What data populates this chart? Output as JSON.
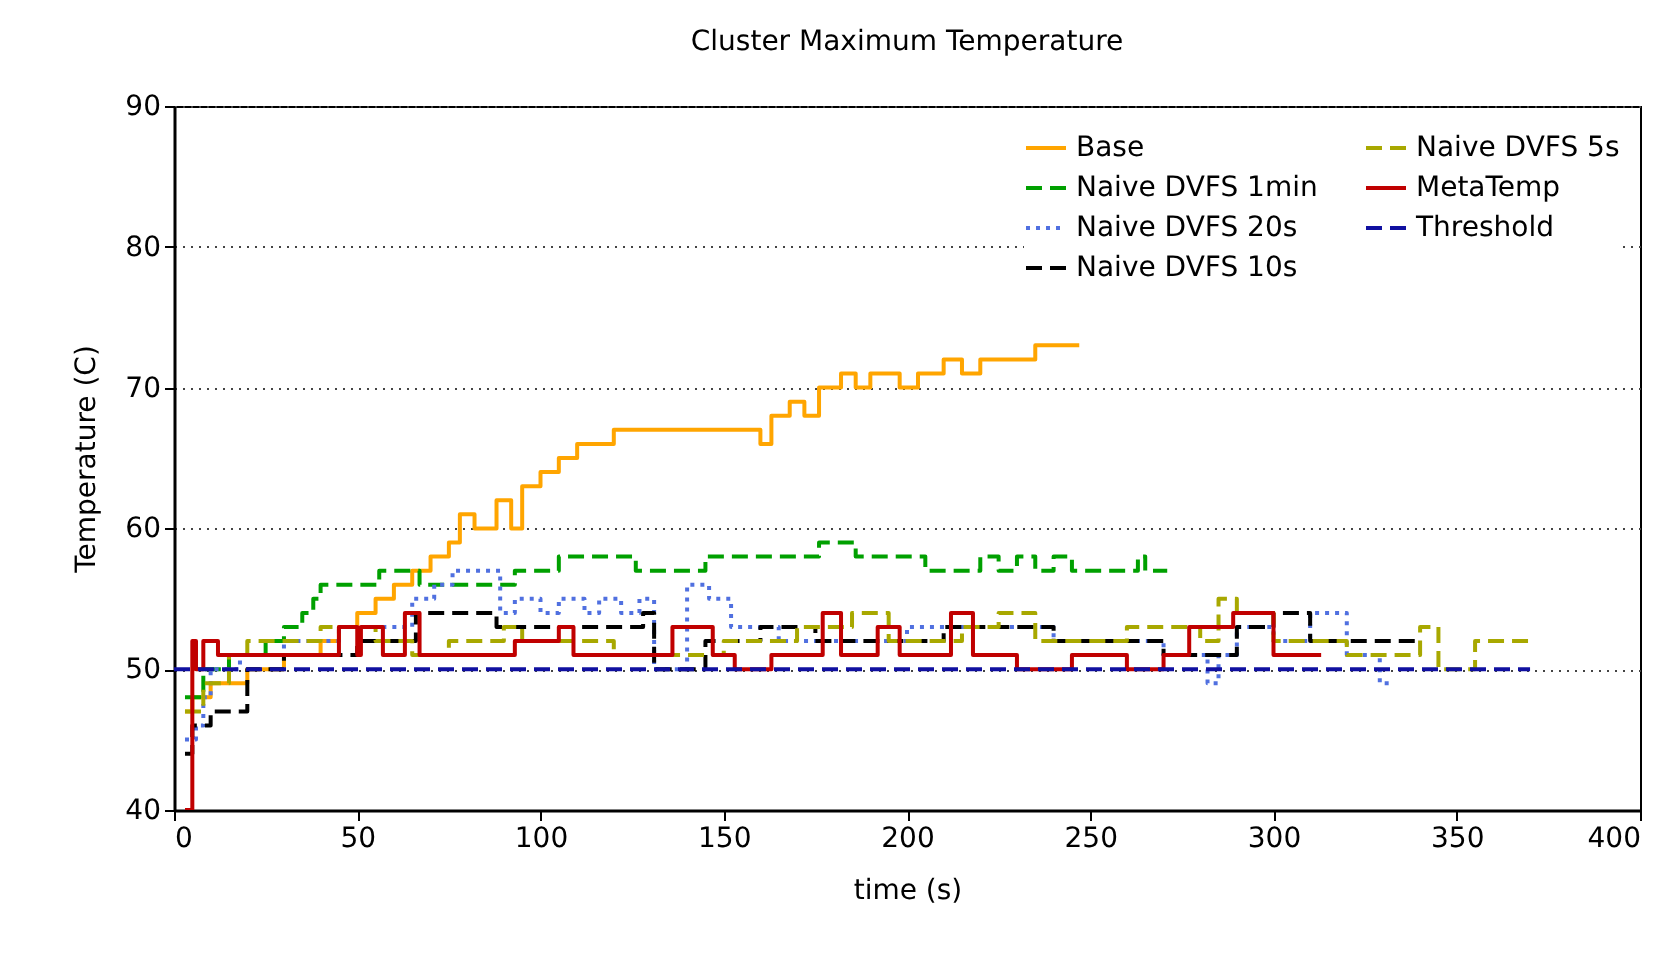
{
  "chart_data": {
    "type": "step",
    "title": "Cluster Maximum Temperature",
    "xlabel": "time (s)",
    "ylabel": "Temperature (C)",
    "xlim": [
      0,
      400
    ],
    "xticks": [
      0,
      50,
      100,
      150,
      200,
      250,
      300,
      350,
      400
    ],
    "ylim": [
      40,
      90
    ],
    "yticks": [
      40,
      50,
      60,
      70,
      80,
      90
    ],
    "grid": "y",
    "legend": "top right",
    "series": [
      {
        "name": "Base",
        "color": "#ffa500",
        "line_style": "solid",
        "x": [
          3,
          5,
          10,
          20,
          30,
          40,
          45,
          50,
          55,
          60,
          65,
          70,
          75,
          78,
          82,
          88,
          92,
          95,
          100,
          105,
          110,
          120,
          160,
          163,
          168,
          172,
          176,
          182,
          186,
          190,
          198,
          203,
          210,
          215,
          220,
          235,
          247
        ],
        "values": [
          47,
          48,
          49,
          50,
          51,
          52,
          53,
          54,
          55,
          56,
          57,
          58,
          59,
          61,
          60,
          62,
          60,
          63,
          64,
          65,
          66,
          67,
          66,
          68,
          69,
          68,
          70,
          71,
          70,
          71,
          70,
          71,
          72,
          71,
          72,
          73,
          73
        ]
      },
      {
        "name": "Naive DVFS 1min",
        "color": "#00a000",
        "line_style": "dashed",
        "x": [
          3,
          8,
          15,
          25,
          30,
          35,
          38,
          40,
          56,
          67,
          93,
          105,
          126,
          145,
          176,
          186,
          205,
          215,
          220,
          225,
          230,
          235,
          240,
          245,
          258,
          263,
          265,
          271
        ],
        "values": [
          48,
          50,
          51,
          52,
          53,
          54,
          55,
          56,
          57,
          56,
          57,
          58,
          57,
          58,
          59,
          58,
          57,
          57,
          58,
          57,
          58,
          57,
          58,
          57,
          57,
          58,
          57,
          57
        ]
      },
      {
        "name": "Naive DVFS 20s",
        "color": "#5070e0",
        "line_style": "dotted",
        "x": [
          3,
          6,
          8,
          10,
          18,
          30,
          45,
          65,
          71,
          76,
          89,
          93,
          100,
          105,
          112,
          116,
          122,
          127,
          131,
          138,
          140,
          146,
          152,
          165,
          200,
          240,
          270,
          282,
          285,
          290,
          300,
          310,
          320,
          329,
          332
        ],
        "values": [
          45,
          46,
          48,
          50,
          51,
          52,
          53,
          55,
          56,
          57,
          54,
          55,
          54,
          55,
          54,
          55,
          54,
          55,
          50,
          50,
          56,
          55,
          53,
          52,
          53,
          52,
          51,
          49,
          51,
          53,
          52,
          54,
          51,
          49,
          49
        ]
      },
      {
        "name": "Naive DVFS 10s",
        "color": "#000000",
        "line_style": "dashed",
        "x": [
          3,
          5,
          10,
          20,
          30,
          50,
          66,
          88,
          100,
          128,
          131,
          138,
          145,
          160,
          175,
          190,
          210,
          240,
          270,
          290,
          300,
          310,
          320,
          340
        ],
        "values": [
          44,
          46,
          47,
          50,
          51,
          52,
          54,
          53,
          53,
          54,
          50,
          50,
          52,
          53,
          52,
          52,
          53,
          52,
          51,
          53,
          54,
          52,
          52,
          52
        ]
      },
      {
        "name": "Naive DVFS 5s",
        "color": "#a8a800",
        "line_style": "dashed",
        "x": [
          3,
          8,
          15,
          20,
          40,
          55,
          65,
          75,
          90,
          95,
          120,
          150,
          170,
          185,
          195,
          215,
          225,
          235,
          260,
          280,
          285,
          290,
          300,
          320,
          340,
          345,
          355,
          360,
          370
        ],
        "values": [
          47,
          49,
          51,
          52,
          53,
          52,
          51,
          52,
          53,
          52,
          51,
          52,
          53,
          54,
          52,
          53,
          54,
          52,
          53,
          52,
          55,
          54,
          52,
          51,
          53,
          50,
          52,
          52,
          52
        ]
      },
      {
        "name": "MetaTemp",
        "color": "#c00000",
        "line_style": "solid",
        "x": [
          3,
          5,
          6,
          8,
          12,
          45,
          50,
          51,
          57,
          63,
          67,
          93,
          105,
          109,
          136,
          147,
          153,
          163,
          171,
          177,
          182,
          192,
          198,
          212,
          218,
          230,
          245,
          260,
          270,
          277,
          289,
          300,
          313
        ],
        "values": [
          40,
          52,
          50,
          52,
          51,
          53,
          51,
          53,
          51,
          54,
          51,
          52,
          53,
          51,
          53,
          51,
          50,
          51,
          51,
          54,
          51,
          53,
          51,
          54,
          51,
          50,
          51,
          50,
          51,
          53,
          54,
          51,
          51
        ]
      },
      {
        "name": "Threshold",
        "color": "#1010a0",
        "line_style": "dashed",
        "x": [
          0,
          370
        ],
        "values": [
          50,
          50
        ]
      }
    ]
  }
}
